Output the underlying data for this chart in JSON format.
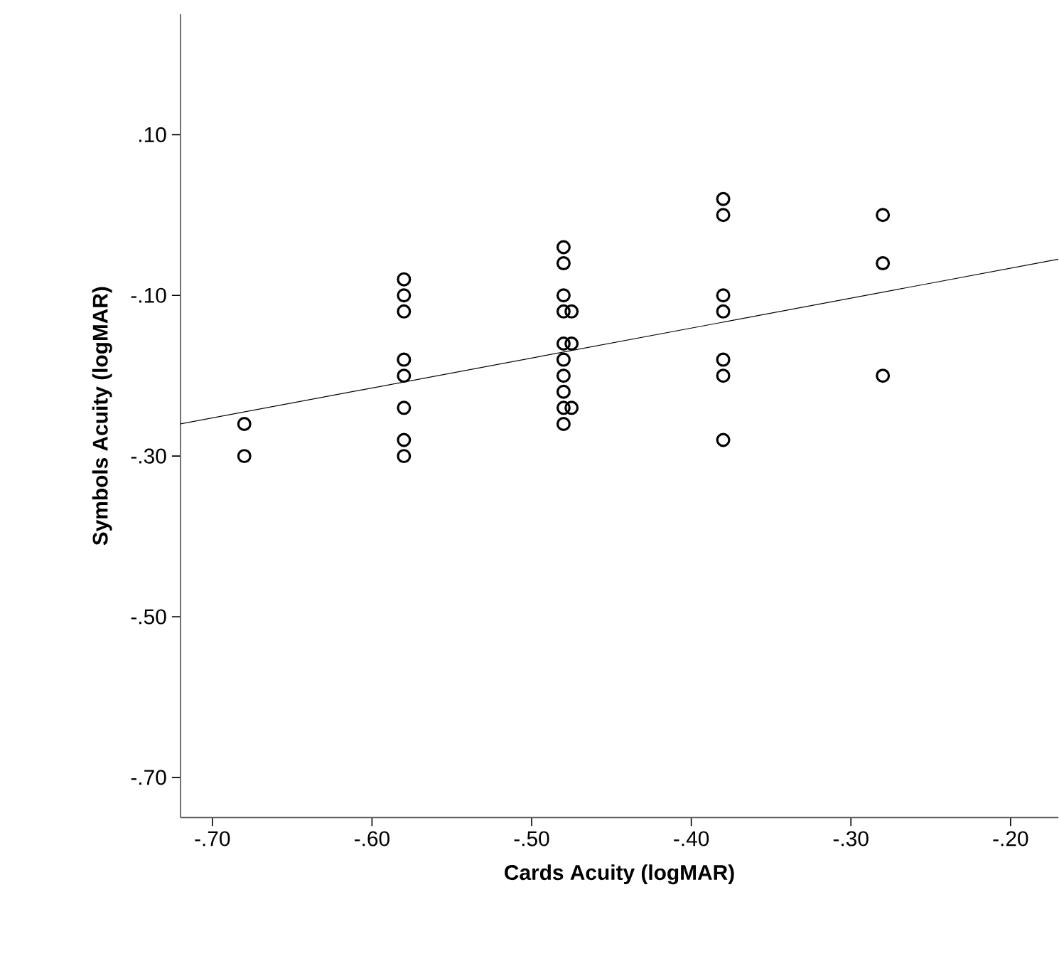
{
  "chart_data": {
    "type": "scatter",
    "xlabel": "Cards Acuity (logMAR)",
    "ylabel": "Symbols Acuity (logMAR)",
    "xlim": [
      -0.72,
      -0.17
    ],
    "ylim": [
      -0.75,
      0.25
    ],
    "xticks": [
      {
        "value": -0.7,
        "label": "-.70"
      },
      {
        "value": -0.6,
        "label": "-.60"
      },
      {
        "value": -0.5,
        "label": "-.50"
      },
      {
        "value": -0.4,
        "label": "-.40"
      },
      {
        "value": -0.3,
        "label": "-.30"
      },
      {
        "value": -0.2,
        "label": "-.20"
      }
    ],
    "yticks": [
      {
        "value": 0.1,
        "label": ".10"
      },
      {
        "value": -0.1,
        "label": "-.10"
      },
      {
        "value": -0.3,
        "label": "-.30"
      },
      {
        "value": -0.5,
        "label": "-.50"
      },
      {
        "value": -0.7,
        "label": "-.70"
      }
    ],
    "grid": false,
    "marker": "circle",
    "series": [
      {
        "color": "#000000",
        "x": [
          -0.68,
          -0.68,
          -0.58,
          -0.58,
          -0.58,
          -0.58,
          -0.58,
          -0.58,
          -0.58,
          -0.58,
          -0.48,
          -0.48,
          -0.48,
          -0.48,
          -0.475,
          -0.48,
          -0.475,
          -0.48,
          -0.48,
          -0.48,
          -0.475,
          -0.48,
          -0.48,
          -0.38,
          -0.38,
          -0.38,
          -0.38,
          -0.38,
          -0.38,
          -0.38,
          -0.28,
          -0.28,
          -0.28
        ],
        "values": [
          -0.26,
          -0.3,
          -0.08,
          -0.1,
          -0.12,
          -0.18,
          -0.2,
          -0.24,
          -0.28,
          -0.3,
          -0.04,
          -0.06,
          -0.1,
          -0.12,
          -0.12,
          -0.16,
          -0.16,
          -0.18,
          -0.2,
          -0.22,
          -0.24,
          -0.24,
          -0.26,
          0.02,
          0.0,
          -0.1,
          -0.12,
          -0.18,
          -0.2,
          -0.28,
          0.0,
          -0.06,
          -0.2
        ]
      },
      {
        "type": "line",
        "color": "#000000",
        "marker": "none",
        "x": [
          -0.72,
          -0.17
        ],
        "values": [
          -0.26,
          -0.055
        ]
      }
    ]
  }
}
